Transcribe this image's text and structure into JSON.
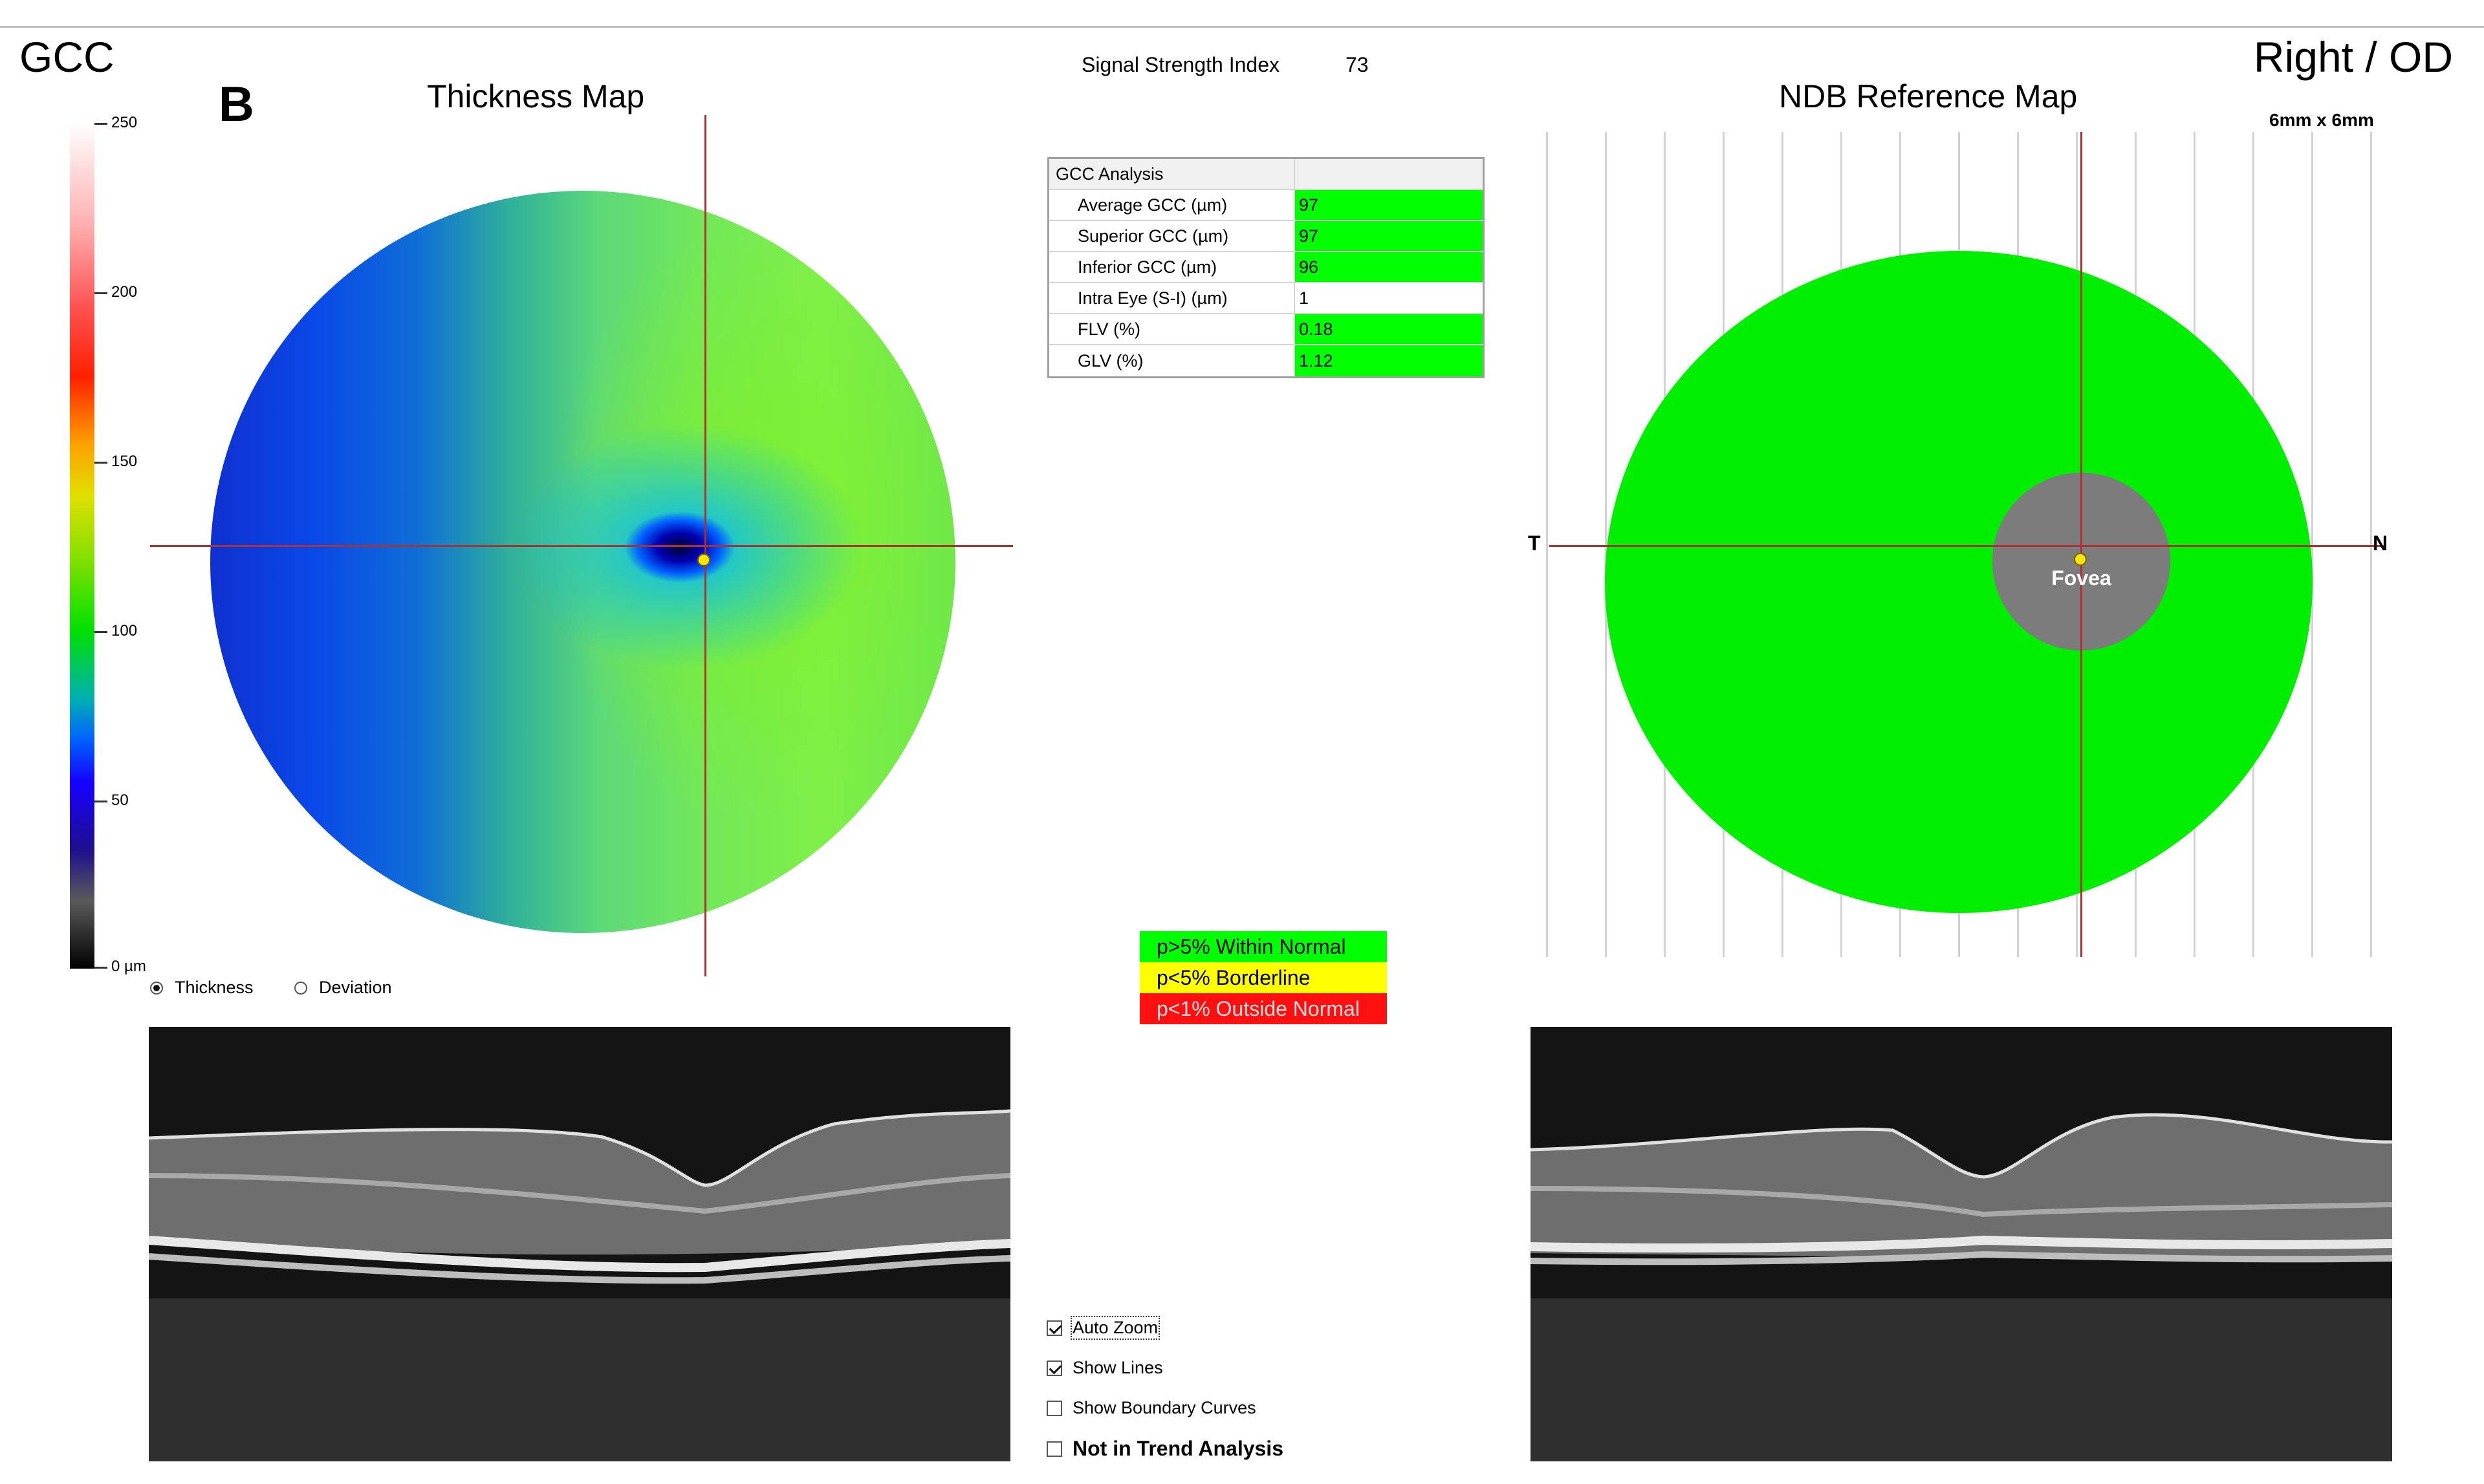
{
  "header": {
    "module": "GCC",
    "eye": "Right / OD",
    "panel_letter": "B",
    "signal_strength_label": "Signal Strength Index",
    "signal_strength_value": "73"
  },
  "thickness_map": {
    "title": "Thickness Map",
    "scale_ticks": [
      "250",
      "200",
      "150",
      "100",
      "50",
      "0 µm"
    ],
    "view_mode": {
      "options": [
        "Thickness",
        "Deviation"
      ],
      "selected": "Thickness"
    }
  },
  "gcc_analysis": {
    "header": "GCC Analysis",
    "rows": [
      {
        "label": "Average GCC (µm)",
        "value": "97",
        "status": "green"
      },
      {
        "label": "Superior GCC (µm)",
        "value": "97",
        "status": "green"
      },
      {
        "label": "Inferior GCC (µm)",
        "value": "96",
        "status": "green"
      },
      {
        "label": "Intra Eye (S-I) (µm)",
        "value": "1",
        "status": "none"
      },
      {
        "label": "FLV (%)",
        "value": "0.18",
        "status": "green"
      },
      {
        "label": "GLV (%)",
        "value": "1.12",
        "status": "green"
      }
    ]
  },
  "legend": [
    {
      "label": "p>5% Within Normal",
      "color": "#00ff00"
    },
    {
      "label": "p<5% Borderline",
      "color": "#ffff00"
    },
    {
      "label": "p<1% Outside Normal",
      "color": "#ff0000"
    }
  ],
  "ndb_map": {
    "title": "NDB Reference Map",
    "scan_size": "6mm x 6mm",
    "temporal_label": "T",
    "nasal_label": "N",
    "fovea_label": "Fovea",
    "map_color": "#00ee00"
  },
  "options": {
    "auto_zoom": {
      "label": "Auto Zoom",
      "checked": true
    },
    "show_lines": {
      "label": "Show Lines",
      "checked": true
    },
    "show_boundary_curves": {
      "label": "Show Boundary Curves",
      "checked": false
    },
    "not_in_trend_analysis": {
      "label": "Not in Trend Analysis",
      "checked": false
    }
  }
}
